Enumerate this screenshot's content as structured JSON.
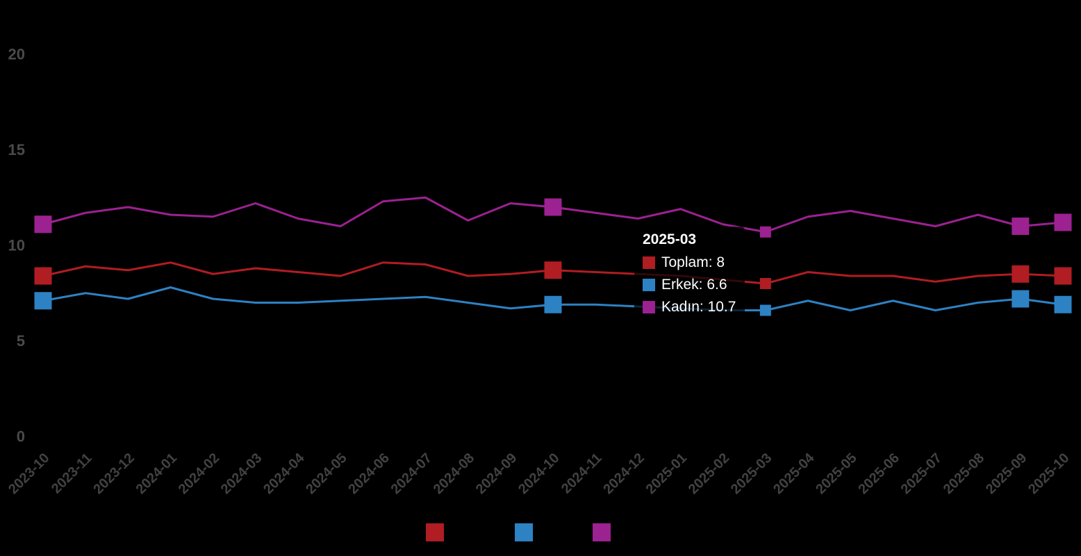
{
  "chart_data": {
    "type": "line",
    "title": "",
    "xlabel": "",
    "ylabel": "",
    "ylim": [
      0,
      20
    ],
    "yticks": [
      0,
      5,
      10,
      15,
      20
    ],
    "grid": false,
    "legend_position": "bottom",
    "x_label_rotation": -45,
    "categories": [
      "2023-10",
      "2023-11",
      "2023-12",
      "2024-01",
      "2024-02",
      "2024-03",
      "2024-04",
      "2024-05",
      "2024-06",
      "2024-07",
      "2024-08",
      "2024-09",
      "2024-10",
      "2024-11",
      "2024-12",
      "2025-01",
      "2025-02",
      "2025-03",
      "2025-04",
      "2025-05",
      "2025-06",
      "2025-07",
      "2025-08",
      "2025-09",
      "2025-10"
    ],
    "series": [
      {
        "name": "Toplam",
        "color": "#b01d22",
        "values": [
          8.4,
          8.9,
          8.7,
          9.1,
          8.5,
          8.8,
          8.6,
          8.4,
          9.1,
          9.0,
          8.4,
          8.5,
          8.7,
          8.6,
          8.5,
          8.4,
          8.2,
          8.0,
          8.6,
          8.4,
          8.4,
          8.1,
          8.4,
          8.5,
          8.4
        ]
      },
      {
        "name": "Erkek",
        "color": "#2d82c4",
        "values": [
          7.1,
          7.5,
          7.2,
          7.8,
          7.2,
          7.0,
          7.0,
          7.1,
          7.2,
          7.3,
          7.0,
          6.7,
          6.9,
          6.9,
          6.8,
          6.7,
          6.6,
          6.6,
          7.1,
          6.6,
          7.1,
          6.6,
          7.0,
          7.2,
          6.9
        ]
      },
      {
        "name": "Kadın",
        "color": "#9c2191",
        "values": [
          11.1,
          11.7,
          12.0,
          11.6,
          11.5,
          12.2,
          11.4,
          11.0,
          12.3,
          12.5,
          11.3,
          12.2,
          12.0,
          11.7,
          11.4,
          11.9,
          11.1,
          10.7,
          11.5,
          11.8,
          11.4,
          11.0,
          11.6,
          11.0,
          11.2
        ]
      }
    ],
    "marker_indices": [
      0,
      12,
      23,
      24
    ],
    "hover_index": 17
  },
  "tooltip": {
    "title": "2025-03",
    "rows": [
      {
        "label": "Toplam",
        "value": "8",
        "color": "#b01d22"
      },
      {
        "label": "Erkek",
        "value": "6.6",
        "color": "#2d82c4"
      },
      {
        "label": "Kadın",
        "value": "10.7",
        "color": "#9c2191"
      }
    ]
  },
  "legend": {
    "label_color": "#000000",
    "items": [
      {
        "label": "Toplam",
        "color": "#b01d22"
      },
      {
        "label": "Erkek",
        "color": "#2d82c4"
      },
      {
        "label": "Kadın",
        "color": "#9c2191"
      }
    ]
  },
  "colors": {
    "background": "#000000",
    "y_axis_label": "#4a4a4a",
    "x_axis_label": "#424242",
    "tooltip_text": "#ffffff"
  }
}
